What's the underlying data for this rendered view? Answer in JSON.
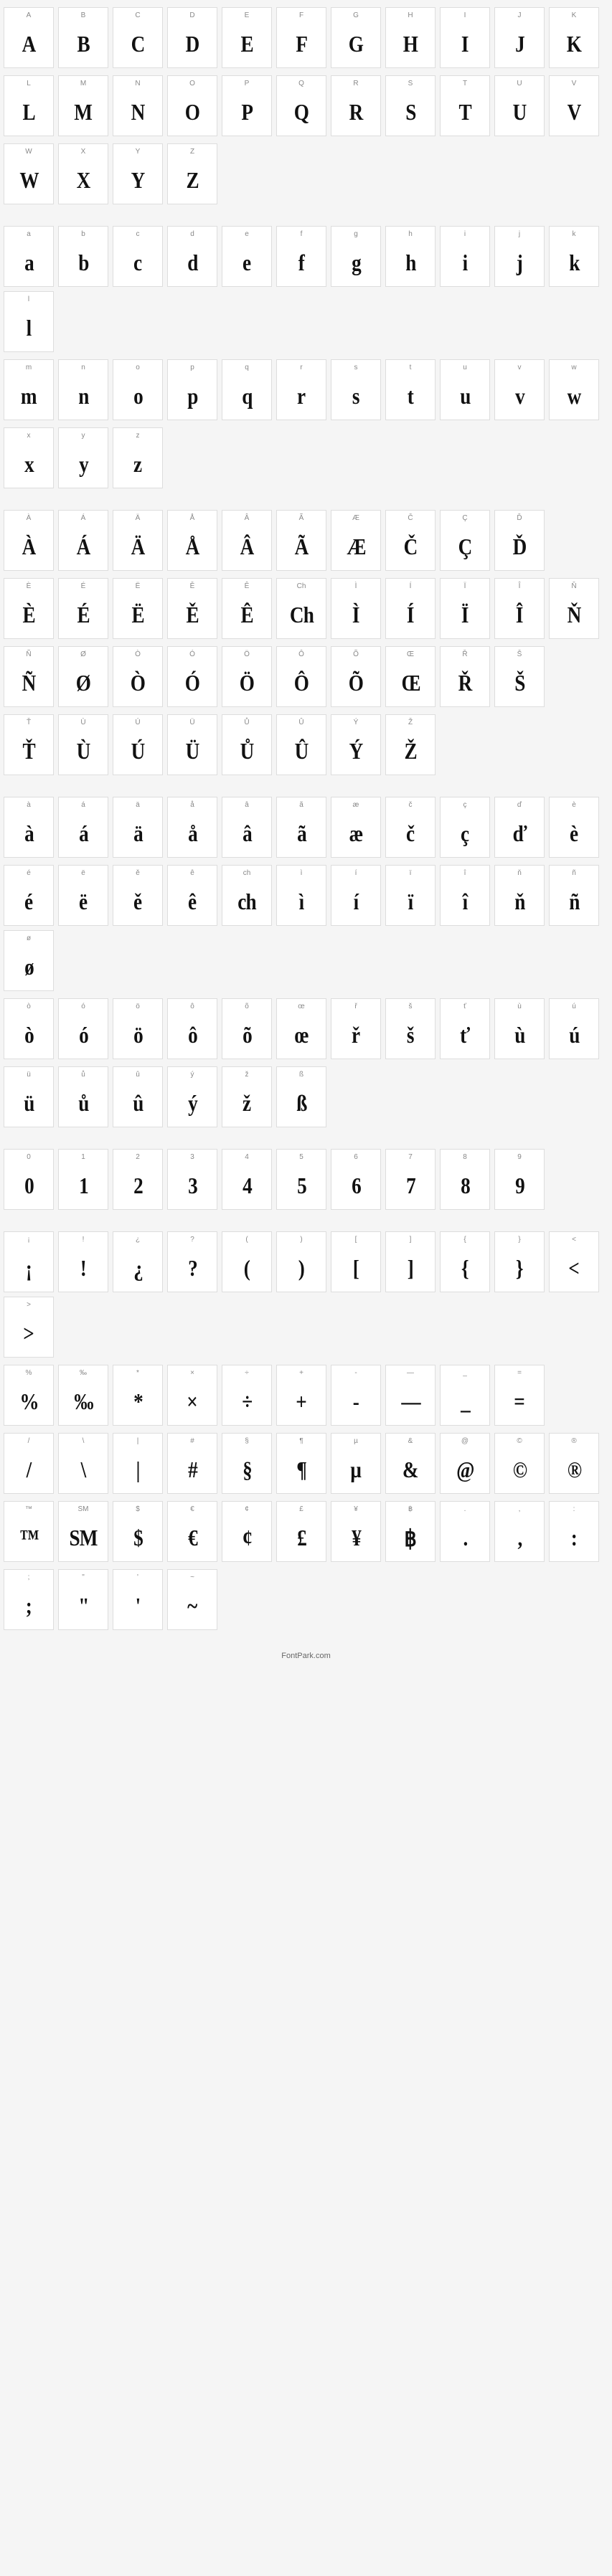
{
  "footer": "FontPark.com",
  "sections": [
    {
      "rows": [
        [
          {
            "label": "A",
            "glyph": "A"
          },
          {
            "label": "B",
            "glyph": "B"
          },
          {
            "label": "C",
            "glyph": "C"
          },
          {
            "label": "D",
            "glyph": "D"
          },
          {
            "label": "E",
            "glyph": "E"
          },
          {
            "label": "F",
            "glyph": "F"
          },
          {
            "label": "G",
            "glyph": "G"
          },
          {
            "label": "H",
            "glyph": "H"
          },
          {
            "label": "I",
            "glyph": "I"
          },
          {
            "label": "J",
            "glyph": "J"
          },
          {
            "label": "K",
            "glyph": "K"
          }
        ],
        [
          {
            "label": "L",
            "glyph": "L"
          },
          {
            "label": "M",
            "glyph": "M"
          },
          {
            "label": "N",
            "glyph": "N"
          },
          {
            "label": "O",
            "glyph": "O"
          },
          {
            "label": "P",
            "glyph": "P"
          },
          {
            "label": "Q",
            "glyph": "Q"
          },
          {
            "label": "R",
            "glyph": "R"
          },
          {
            "label": "S",
            "glyph": "S"
          },
          {
            "label": "T",
            "glyph": "T"
          },
          {
            "label": "U",
            "glyph": "U"
          },
          {
            "label": "V",
            "glyph": "V"
          }
        ],
        [
          {
            "label": "W",
            "glyph": "W"
          },
          {
            "label": "X",
            "glyph": "X"
          },
          {
            "label": "Y",
            "glyph": "Y"
          },
          {
            "label": "Z",
            "glyph": "Z"
          }
        ]
      ]
    },
    {
      "rows": [
        [
          {
            "label": "a",
            "glyph": "a"
          },
          {
            "label": "b",
            "glyph": "b"
          },
          {
            "label": "c",
            "glyph": "c"
          },
          {
            "label": "d",
            "glyph": "d"
          },
          {
            "label": "e",
            "glyph": "e"
          },
          {
            "label": "f",
            "glyph": "f"
          },
          {
            "label": "g",
            "glyph": "g"
          },
          {
            "label": "h",
            "glyph": "h"
          },
          {
            "label": "i",
            "glyph": "i"
          },
          {
            "label": "j",
            "glyph": "j"
          },
          {
            "label": "k",
            "glyph": "k"
          },
          {
            "label": "l",
            "glyph": "l"
          }
        ],
        [
          {
            "label": "m",
            "glyph": "m"
          },
          {
            "label": "n",
            "glyph": "n"
          },
          {
            "label": "o",
            "glyph": "o"
          },
          {
            "label": "p",
            "glyph": "p"
          },
          {
            "label": "q",
            "glyph": "q"
          },
          {
            "label": "r",
            "glyph": "r"
          },
          {
            "label": "s",
            "glyph": "s"
          },
          {
            "label": "t",
            "glyph": "t"
          },
          {
            "label": "u",
            "glyph": "u"
          },
          {
            "label": "v",
            "glyph": "v"
          },
          {
            "label": "w",
            "glyph": "w"
          }
        ],
        [
          {
            "label": "x",
            "glyph": "x"
          },
          {
            "label": "y",
            "glyph": "y"
          },
          {
            "label": "z",
            "glyph": "z"
          }
        ]
      ]
    },
    {
      "rows": [
        [
          {
            "label": "À",
            "glyph": "À"
          },
          {
            "label": "Á",
            "glyph": "Á"
          },
          {
            "label": "Ä",
            "glyph": "Ä"
          },
          {
            "label": "Å",
            "glyph": "Å"
          },
          {
            "label": "Â",
            "glyph": "Â"
          },
          {
            "label": "Ã",
            "glyph": "Ã"
          },
          {
            "label": "Æ",
            "glyph": "Æ"
          },
          {
            "label": "Č",
            "glyph": "Č"
          },
          {
            "label": "Ç",
            "glyph": "Ç"
          },
          {
            "label": "Ď",
            "glyph": "Ď"
          }
        ],
        [
          {
            "label": "È",
            "glyph": "È"
          },
          {
            "label": "É",
            "glyph": "É"
          },
          {
            "label": "Ë",
            "glyph": "Ë"
          },
          {
            "label": "Ě",
            "glyph": "Ě"
          },
          {
            "label": "Ê",
            "glyph": "Ê"
          },
          {
            "label": "Ch",
            "glyph": "Ch"
          },
          {
            "label": "Ì",
            "glyph": "Ì"
          },
          {
            "label": "Í",
            "glyph": "Í"
          },
          {
            "label": "Ï",
            "glyph": "Ï"
          },
          {
            "label": "Î",
            "glyph": "Î"
          },
          {
            "label": "Ň",
            "glyph": "Ň"
          }
        ],
        [
          {
            "label": "Ñ",
            "glyph": "Ñ"
          },
          {
            "label": "Ø",
            "glyph": "Ø"
          },
          {
            "label": "Ò",
            "glyph": "Ò"
          },
          {
            "label": "Ó",
            "glyph": "Ó"
          },
          {
            "label": "Ö",
            "glyph": "Ö"
          },
          {
            "label": "Ô",
            "glyph": "Ô"
          },
          {
            "label": "Õ",
            "glyph": "Õ"
          },
          {
            "label": "Œ",
            "glyph": "Œ"
          },
          {
            "label": "Ř",
            "glyph": "Ř"
          },
          {
            "label": "Š",
            "glyph": "Š"
          }
        ],
        [
          {
            "label": "Ť",
            "glyph": "Ť"
          },
          {
            "label": "Ù",
            "glyph": "Ù"
          },
          {
            "label": "Ú",
            "glyph": "Ú"
          },
          {
            "label": "Ü",
            "glyph": "Ü"
          },
          {
            "label": "Ů",
            "glyph": "Ů"
          },
          {
            "label": "Û",
            "glyph": "Û"
          },
          {
            "label": "Ý",
            "glyph": "Ý"
          },
          {
            "label": "Ž",
            "glyph": "Ž"
          }
        ]
      ]
    },
    {
      "rows": [
        [
          {
            "label": "à",
            "glyph": "à"
          },
          {
            "label": "á",
            "glyph": "á"
          },
          {
            "label": "ä",
            "glyph": "ä"
          },
          {
            "label": "å",
            "glyph": "å"
          },
          {
            "label": "â",
            "glyph": "â"
          },
          {
            "label": "ã",
            "glyph": "ã"
          },
          {
            "label": "æ",
            "glyph": "æ"
          },
          {
            "label": "č",
            "glyph": "č"
          },
          {
            "label": "ç",
            "glyph": "ç"
          },
          {
            "label": "ď",
            "glyph": "ď"
          },
          {
            "label": "è",
            "glyph": "è"
          }
        ],
        [
          {
            "label": "é",
            "glyph": "é"
          },
          {
            "label": "ë",
            "glyph": "ë"
          },
          {
            "label": "ě",
            "glyph": "ě"
          },
          {
            "label": "ê",
            "glyph": "ê"
          },
          {
            "label": "ch",
            "glyph": "ch"
          },
          {
            "label": "ì",
            "glyph": "ì"
          },
          {
            "label": "í",
            "glyph": "í"
          },
          {
            "label": "ï",
            "glyph": "ï"
          },
          {
            "label": "î",
            "glyph": "î"
          },
          {
            "label": "ň",
            "glyph": "ň"
          },
          {
            "label": "ñ",
            "glyph": "ñ"
          },
          {
            "label": "ø",
            "glyph": "ø"
          }
        ],
        [
          {
            "label": "ò",
            "glyph": "ò"
          },
          {
            "label": "ó",
            "glyph": "ó"
          },
          {
            "label": "ö",
            "glyph": "ö"
          },
          {
            "label": "ô",
            "glyph": "ô"
          },
          {
            "label": "õ",
            "glyph": "õ"
          },
          {
            "label": "œ",
            "glyph": "œ"
          },
          {
            "label": "ř",
            "glyph": "ř"
          },
          {
            "label": "š",
            "glyph": "š"
          },
          {
            "label": "ť",
            "glyph": "ť"
          },
          {
            "label": "ù",
            "glyph": "ù"
          },
          {
            "label": "ú",
            "glyph": "ú"
          }
        ],
        [
          {
            "label": "ü",
            "glyph": "ü"
          },
          {
            "label": "ů",
            "glyph": "ů"
          },
          {
            "label": "û",
            "glyph": "û"
          },
          {
            "label": "ý",
            "glyph": "ý"
          },
          {
            "label": "ž",
            "glyph": "ž"
          },
          {
            "label": "ß",
            "glyph": "ß"
          }
        ]
      ]
    },
    {
      "rows": [
        [
          {
            "label": "0",
            "glyph": "0"
          },
          {
            "label": "1",
            "glyph": "1"
          },
          {
            "label": "2",
            "glyph": "2"
          },
          {
            "label": "3",
            "glyph": "3"
          },
          {
            "label": "4",
            "glyph": "4"
          },
          {
            "label": "5",
            "glyph": "5"
          },
          {
            "label": "6",
            "glyph": "6"
          },
          {
            "label": "7",
            "glyph": "7"
          },
          {
            "label": "8",
            "glyph": "8"
          },
          {
            "label": "9",
            "glyph": "9"
          }
        ]
      ]
    },
    {
      "rows": [
        [
          {
            "label": "¡",
            "glyph": "¡"
          },
          {
            "label": "!",
            "glyph": "!"
          },
          {
            "label": "¿",
            "glyph": "¿"
          },
          {
            "label": "?",
            "glyph": "?"
          },
          {
            "label": "(",
            "glyph": "("
          },
          {
            "label": ")",
            "glyph": ")"
          },
          {
            "label": "[",
            "glyph": "["
          },
          {
            "label": "]",
            "glyph": "]"
          },
          {
            "label": "{",
            "glyph": "{"
          },
          {
            "label": "}",
            "glyph": "}"
          },
          {
            "label": "<",
            "glyph": "<"
          },
          {
            "label": ">",
            "glyph": ">"
          }
        ],
        [
          {
            "label": "%",
            "glyph": "%"
          },
          {
            "label": "‰",
            "glyph": "‰"
          },
          {
            "label": "*",
            "glyph": "*"
          },
          {
            "label": "×",
            "glyph": "×"
          },
          {
            "label": "÷",
            "glyph": "÷"
          },
          {
            "label": "+",
            "glyph": "+"
          },
          {
            "label": "-",
            "glyph": "-"
          },
          {
            "label": "—",
            "glyph": "—"
          },
          {
            "label": "_",
            "glyph": "_"
          },
          {
            "label": "=",
            "glyph": "="
          }
        ],
        [
          {
            "label": "/",
            "glyph": "/"
          },
          {
            "label": "\\",
            "glyph": "\\"
          },
          {
            "label": "|",
            "glyph": "|"
          },
          {
            "label": "#",
            "glyph": "#"
          },
          {
            "label": "§",
            "glyph": "§"
          },
          {
            "label": "¶",
            "glyph": "¶"
          },
          {
            "label": "µ",
            "glyph": "µ"
          },
          {
            "label": "&",
            "glyph": "&"
          },
          {
            "label": "@",
            "glyph": "@"
          },
          {
            "label": "©",
            "glyph": "©"
          },
          {
            "label": "®",
            "glyph": "®"
          }
        ],
        [
          {
            "label": "™",
            "glyph": "™"
          },
          {
            "label": "SM",
            "glyph": "SM"
          },
          {
            "label": "$",
            "glyph": "$"
          },
          {
            "label": "€",
            "glyph": "€"
          },
          {
            "label": "¢",
            "glyph": "¢"
          },
          {
            "label": "£",
            "glyph": "£"
          },
          {
            "label": "¥",
            "glyph": "¥"
          },
          {
            "label": "฿",
            "glyph": "฿"
          },
          {
            "label": ".",
            "glyph": "."
          },
          {
            "label": ",",
            "glyph": ","
          },
          {
            "label": ":",
            "glyph": ":"
          }
        ],
        [
          {
            "label": ";",
            "glyph": ";"
          },
          {
            "label": "\"",
            "glyph": "\""
          },
          {
            "label": "'",
            "glyph": "'"
          },
          {
            "label": "~",
            "glyph": "~"
          }
        ]
      ]
    }
  ]
}
